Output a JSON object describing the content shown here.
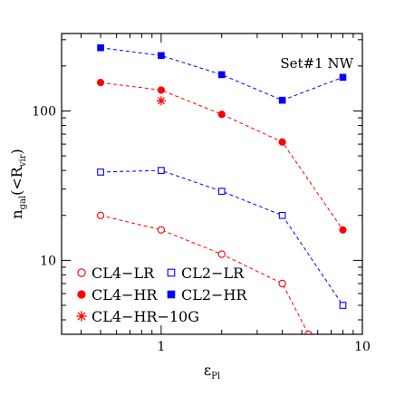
{
  "chart_data": {
    "type": "line",
    "annotation": "Set#1 NW",
    "xlabel": {
      "base": "ε",
      "sub": "Pl"
    },
    "ylabel": {
      "pre": "n",
      "sub1": "gal",
      "mid": "(<R",
      "sub2": "vir",
      "post": ")"
    },
    "xscale": "log",
    "yscale": "log",
    "xlim": [
      0.32,
      10
    ],
    "ylim": [
      3.2,
      330
    ],
    "x_tick_labels": [
      {
        "value": 1,
        "label": "1"
      },
      {
        "value": 10,
        "label": "10"
      }
    ],
    "y_tick_labels": [
      {
        "value": 10,
        "label": "10"
      },
      {
        "value": 100,
        "label": "100"
      }
    ],
    "grid": false,
    "legend_position": "bottom-left",
    "series": [
      {
        "name": "CL4−LR",
        "color": "#ff0000",
        "marker": "open-circle",
        "x": [
          0.5,
          1,
          2,
          4,
          5.4
        ],
        "y": [
          20,
          16,
          11,
          7,
          3.2
        ]
      },
      {
        "name": "CL4−HR",
        "color": "#ff0000",
        "marker": "filled-circle",
        "x": [
          0.5,
          1,
          2,
          4,
          8
        ],
        "y": [
          155,
          138,
          95,
          62,
          16
        ]
      },
      {
        "name": "CL4−HR−10G",
        "color": "#ff0000",
        "marker": "asterisk",
        "line": false,
        "x": [
          1
        ],
        "y": [
          117
        ]
      },
      {
        "name": "CL2−LR",
        "color": "#0000ff",
        "marker": "open-square",
        "x": [
          0.5,
          1,
          2,
          4,
          8
        ],
        "y": [
          39,
          40,
          29,
          20,
          5
        ]
      },
      {
        "name": "CL2−HR",
        "color": "#0000ff",
        "marker": "filled-square",
        "x": [
          0.5,
          1,
          2,
          4,
          8
        ],
        "y": [
          265,
          235,
          175,
          118,
          168
        ]
      }
    ]
  }
}
